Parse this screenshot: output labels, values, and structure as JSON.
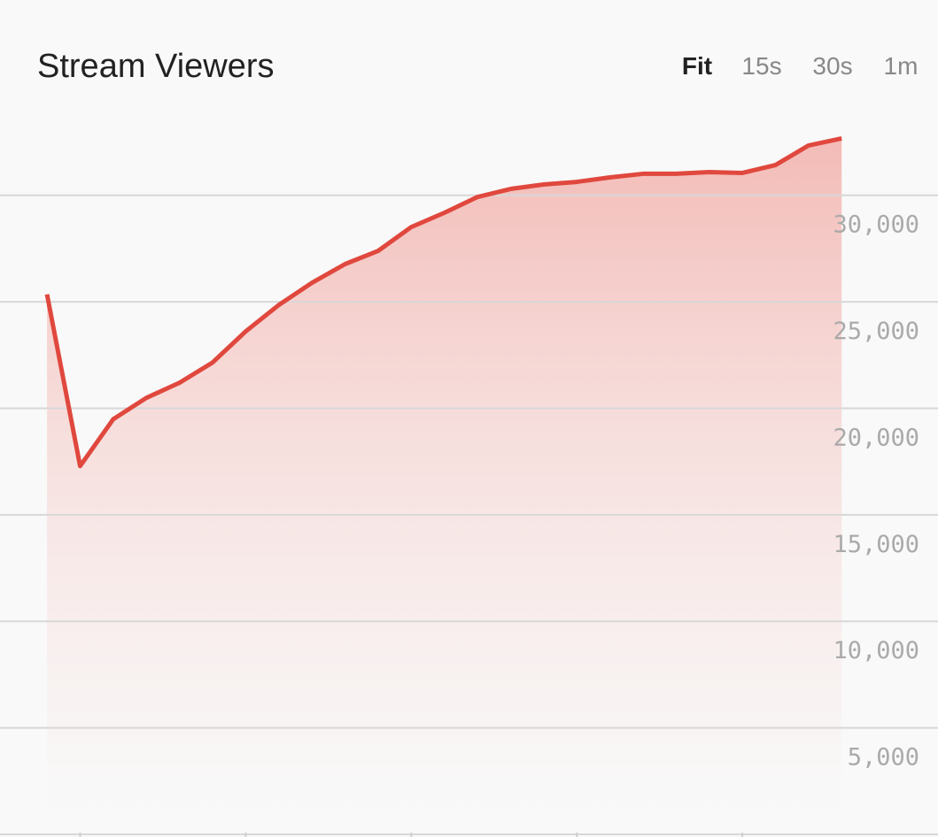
{
  "chart_data": {
    "type": "area",
    "title": "Stream Viewers",
    "range_options": [
      "Fit",
      "15s",
      "30s",
      "1m"
    ],
    "selected_range": "Fit",
    "x": [
      0,
      1,
      2,
      3,
      4,
      5,
      6,
      7,
      8,
      9,
      10,
      11,
      12,
      13,
      14,
      15,
      16,
      17,
      18,
      19,
      20,
      21,
      22,
      23,
      24
    ],
    "xlim": [
      -1.42,
      26.91
    ],
    "xticks": [
      1,
      6,
      11,
      16,
      21
    ],
    "series": [
      {
        "color": "#e0483e",
        "values": [
          25350,
          17290,
          19490,
          20490,
          21200,
          22150,
          23610,
          24850,
          25890,
          26770,
          27390,
          28510,
          29180,
          29920,
          30300,
          30510,
          30630,
          30840,
          31010,
          31010,
          31090,
          31050,
          31420,
          32340,
          32670
        ]
      }
    ],
    "ylim": [
      0,
      34600
    ],
    "yticks": [
      {
        "value": 5000,
        "label": "5,000"
      },
      {
        "value": 10000,
        "label": "10,000"
      },
      {
        "value": 15000,
        "label": "15,000"
      },
      {
        "value": 20000,
        "label": "20,000"
      },
      {
        "value": 25000,
        "label": "25,000"
      },
      {
        "value": 30000,
        "label": "30,000"
      }
    ],
    "grid": true
  }
}
